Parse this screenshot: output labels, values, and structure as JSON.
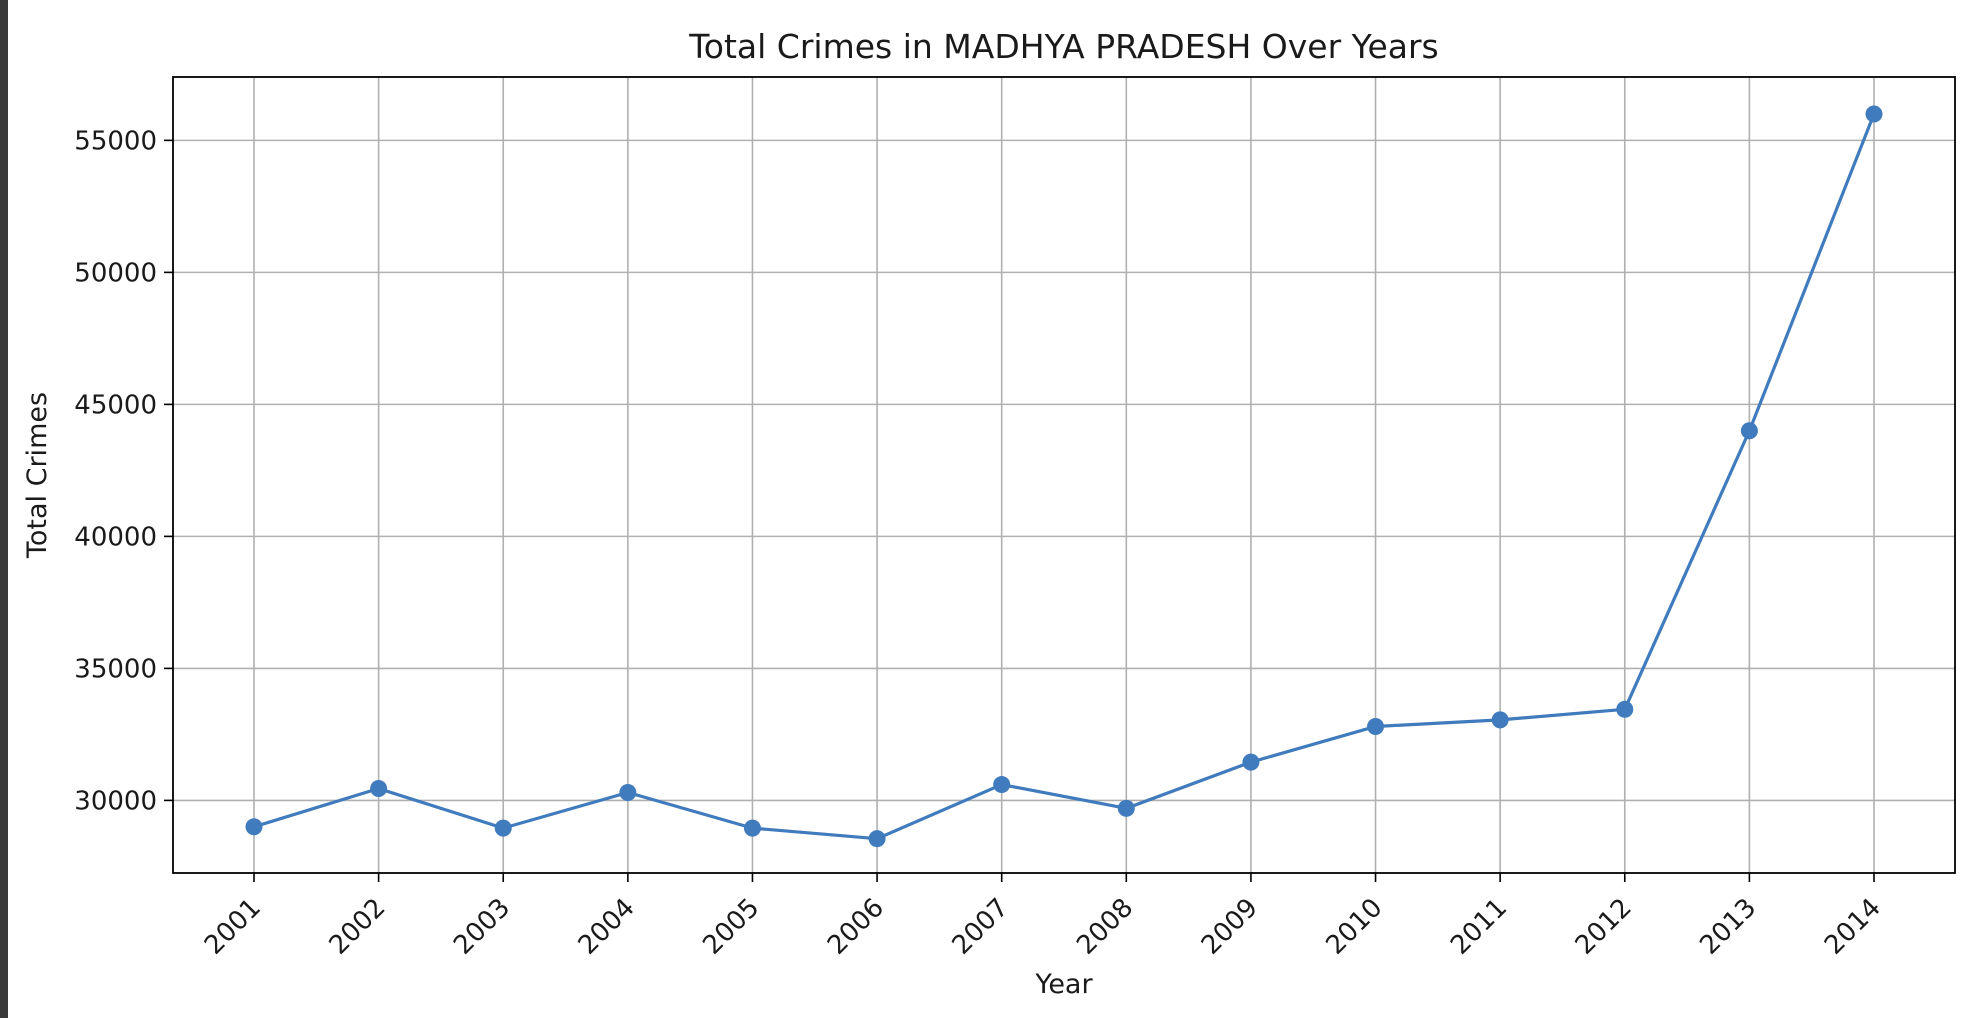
{
  "chart_data": {
    "type": "line",
    "title": "Total Crimes in MADHYA PRADESH Over Years",
    "xlabel": "Year",
    "ylabel": "Total Crimes",
    "x": [
      2001,
      2002,
      2003,
      2004,
      2005,
      2006,
      2007,
      2008,
      2009,
      2010,
      2011,
      2012,
      2013,
      2014
    ],
    "series": [
      {
        "values": [
          29000,
          30450,
          28950,
          30300,
          28950,
          28550,
          30600,
          29700,
          31450,
          32800,
          33050,
          33450,
          44000,
          56000
        ],
        "color": "#3f7bbd",
        "marker": "circle"
      }
    ],
    "yticks": [
      30000,
      35000,
      40000,
      45000,
      50000,
      55000
    ],
    "xlim": [
      2000.35,
      2014.65
    ],
    "ylim": [
      27250,
      57400
    ],
    "grid": true,
    "legend": "none"
  }
}
